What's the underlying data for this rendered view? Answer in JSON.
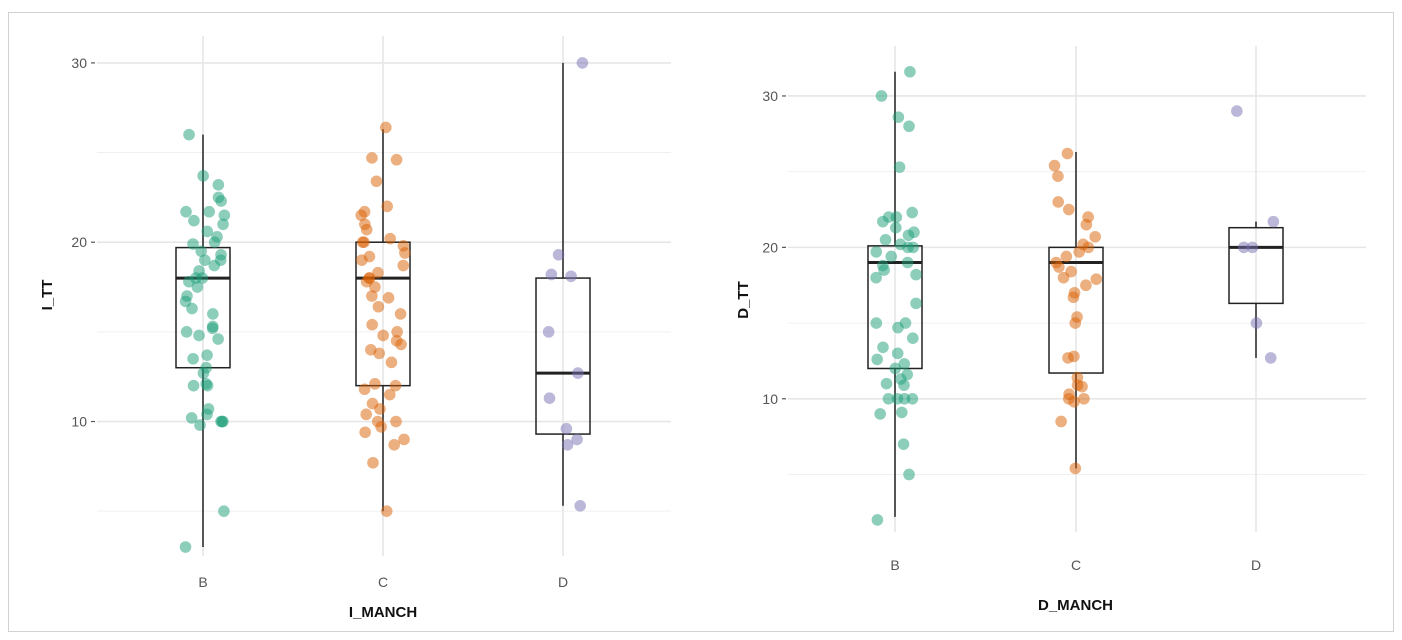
{
  "chart_data": [
    {
      "type": "box",
      "xlabel": "I_MANCH",
      "ylabel": "I_TT",
      "categories": [
        "B",
        "C",
        "D"
      ],
      "yticks": [
        10,
        20,
        30
      ],
      "ylim": [
        2.5,
        31.5
      ],
      "grid": true,
      "colors": [
        "#1b9e77",
        "#d95f02",
        "#7570b3"
      ],
      "boxes": [
        {
          "category": "B",
          "q1": 13,
          "median": 18,
          "q3": 19.7,
          "whisker_low": 3,
          "whisker_high": 26
        },
        {
          "category": "C",
          "q1": 12,
          "median": 18,
          "q3": 20,
          "whisker_low": 5,
          "whisker_high": 26.3
        },
        {
          "category": "D",
          "q1": 9.3,
          "median": 12.7,
          "q3": 18,
          "whisker_low": 5.3,
          "whisker_high": 30
        }
      ],
      "points": [
        {
          "category": "B",
          "values": [
            26,
            23.7,
            23.2,
            22.5,
            22.3,
            21.7,
            21.7,
            21.5,
            21.2,
            21,
            20.6,
            20.3,
            20,
            19.9,
            19.5,
            19.3,
            19,
            19,
            18.7,
            18.4,
            18,
            18,
            17.8,
            17.5,
            17,
            16.7,
            16.3,
            16,
            15.3,
            15.2,
            15,
            14.8,
            14.6,
            13.7,
            13.5,
            13,
            12.7,
            12.1,
            12,
            12,
            10.7,
            10.4,
            10.2,
            10,
            10,
            10,
            9.8,
            5,
            3
          ]
        },
        {
          "category": "C",
          "values": [
            26.4,
            24.7,
            24.6,
            23.4,
            22,
            21.7,
            21.5,
            21,
            20.7,
            20.2,
            20,
            20,
            19.8,
            19.4,
            19.2,
            19,
            18.7,
            18.3,
            18,
            18,
            17.8,
            17.5,
            17,
            16.9,
            16.4,
            16,
            15.4,
            15,
            14.8,
            14.5,
            14.3,
            14,
            13.8,
            13.3,
            12.1,
            12,
            11.8,
            11.5,
            11,
            10.7,
            10.4,
            10,
            10,
            9.7,
            9.4,
            9,
            8.7,
            7.7,
            5
          ]
        },
        {
          "category": "D",
          "values": [
            30,
            19.3,
            18.2,
            18.1,
            15,
            12.7,
            11.3,
            9.6,
            9,
            8.7,
            5.3
          ]
        }
      ]
    },
    {
      "type": "box",
      "xlabel": "D_MANCH",
      "ylabel": "D_TT",
      "categories": [
        "B",
        "C",
        "D"
      ],
      "yticks": [
        10,
        20,
        30
      ],
      "ylim": [
        1.2,
        33.3
      ],
      "grid": true,
      "colors": [
        "#1b9e77",
        "#d95f02",
        "#7570b3"
      ],
      "boxes": [
        {
          "category": "B",
          "q1": 12,
          "median": 19,
          "q3": 20.1,
          "whisker_low": 2.2,
          "whisker_high": 31.6
        },
        {
          "category": "C",
          "q1": 11.7,
          "median": 19,
          "q3": 20,
          "whisker_low": 5.4,
          "whisker_high": 26.3
        },
        {
          "category": "D",
          "q1": 16.3,
          "median": 20,
          "q3": 21.3,
          "whisker_low": 12.7,
          "whisker_high": 21.7
        }
      ],
      "points": [
        {
          "category": "B",
          "values": [
            31.6,
            30,
            28.6,
            28,
            25.3,
            22.3,
            22,
            22,
            21.7,
            21.3,
            21,
            20.8,
            20.5,
            20.2,
            20,
            20,
            19.7,
            19.4,
            19,
            18.8,
            18.5,
            18.2,
            18,
            16.3,
            15,
            15,
            14.7,
            14,
            13.4,
            13,
            12.6,
            12.3,
            12,
            11.6,
            11.3,
            11,
            10.9,
            10,
            10,
            10,
            10,
            9.1,
            9,
            7,
            5,
            2
          ]
        },
        {
          "category": "C",
          "values": [
            26.2,
            25.4,
            24.7,
            23,
            22.5,
            22,
            21.5,
            20.7,
            20.2,
            20,
            19.7,
            19.4,
            19,
            18.7,
            18.4,
            18,
            17.9,
            17.5,
            17,
            16.7,
            15.4,
            15,
            12.8,
            12.7,
            11.4,
            10.9,
            10.8,
            10.3,
            10,
            10,
            9.8,
            8.5,
            5.4
          ]
        },
        {
          "category": "D",
          "values": [
            29,
            21.7,
            20,
            20,
            15,
            12.7
          ]
        }
      ]
    }
  ]
}
